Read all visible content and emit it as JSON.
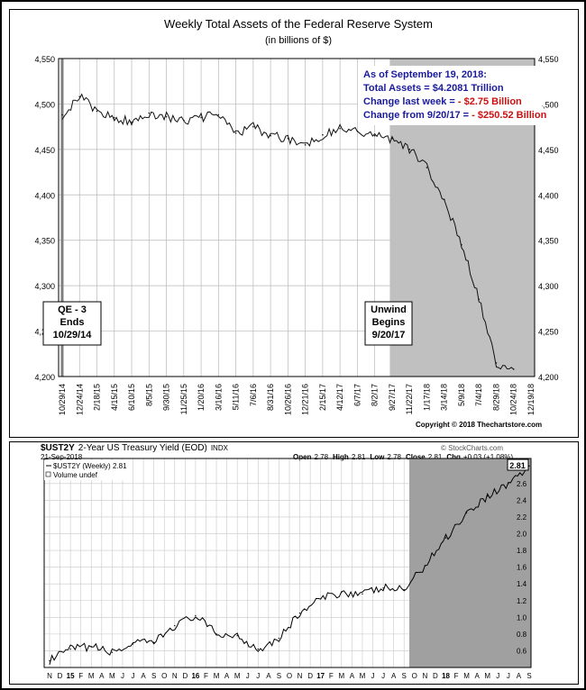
{
  "chart_data": [
    {
      "type": "line",
      "title": "Weekly Total Assets of the Federal Reserve System",
      "subtitle": "(in billions of $)",
      "ylim": [
        4200,
        4550
      ],
      "yticks": [
        "4,550",
        "4,500",
        "4,450",
        "4,400",
        "4,350",
        "4,300",
        "4,250",
        "4,200"
      ],
      "ytick_values": [
        4550,
        4500,
        4450,
        4400,
        4350,
        4300,
        4250,
        4200
      ],
      "xticks": [
        "10/29/14",
        "12/24/14",
        "2/18/15",
        "4/15/15",
        "6/10/15",
        "8/5/15",
        "9/30/15",
        "11/25/15",
        "1/20/16",
        "3/16/16",
        "5/11/16",
        "7/6/16",
        "8/31/16",
        "10/26/16",
        "12/21/16",
        "2/15/17",
        "4/12/17",
        "6/7/17",
        "8/2/17",
        "9/27/17",
        "11/22/17",
        "1/17/18",
        "3/14/18",
        "5/9/18",
        "7/4/18",
        "8/29/18",
        "10/24/18",
        "12/19/18"
      ],
      "grid": true,
      "series": [
        {
          "x": [
            "10/29/14",
            "12/24/14",
            "2/18/15",
            "4/15/15",
            "6/10/15",
            "8/5/15",
            "9/30/15",
            "11/25/15",
            "1/20/16",
            "3/16/16",
            "5/11/16",
            "7/6/16",
            "8/31/16",
            "10/26/16",
            "12/21/16",
            "2/15/17",
            "4/12/17",
            "6/7/17",
            "8/2/17",
            "9/27/17",
            "11/22/17",
            "1/17/18",
            "3/14/18",
            "5/9/18",
            "7/4/18",
            "8/29/18",
            "9/19/18"
          ],
          "values": [
            4488,
            4508,
            4492,
            4485,
            4480,
            4490,
            4486,
            4482,
            4485,
            4488,
            4468,
            4475,
            4465,
            4462,
            4455,
            4466,
            4473,
            4470,
            4465,
            4462,
            4450,
            4430,
            4395,
            4345,
            4285,
            4215,
            4208
          ]
        }
      ],
      "annotations": {
        "qe": [
          "QE - 3",
          "Ends",
          "10/29/14"
        ],
        "unwind": [
          "Unwind",
          "Begins",
          "9/20/17"
        ],
        "info_title": "As of September 19, 2018:",
        "info_total": "Total Assets = $4.2081 Trillion",
        "info_week_label": "Change last week = ",
        "info_week_value": "- $2.75 Billion",
        "info_year_label": "Change from 9/20/17 = ",
        "info_year_value": "- $250.52 Billion",
        "copyright": "Copyright © 2018 Thechartstore.com"
      },
      "colors": {
        "line": "#111111",
        "shade": "#c0c0c0",
        "info_blue": "#1a1a9c",
        "info_red": "#cc1111"
      }
    },
    {
      "type": "line",
      "title": "$UST2Y",
      "subtitle": "2-Year US Treasury Yield (EOD)",
      "exchange": "INDX",
      "brand": "© StockCharts.com",
      "date": "21-Sep-2018",
      "ohlc": {
        "open_label": "Open",
        "open": "2.78",
        "high_label": "High",
        "high": "2.81",
        "low_label": "Low",
        "low": "2.78",
        "close_label": "Close",
        "close": "2.81",
        "chg_label": "Chg",
        "chg": "+0.03 (+1.08%)"
      },
      "legend": [
        "$UST2Y (Weekly) 2.81",
        "Volume undef"
      ],
      "last_value": "2.81",
      "ylim": [
        0.4,
        2.9
      ],
      "yticks": [
        "2.6",
        "2.4",
        "2.2",
        "2.0",
        "1.8",
        "1.6",
        "1.4",
        "1.2",
        "1.0",
        "0.8",
        "0.6"
      ],
      "ytick_values": [
        2.6,
        2.4,
        2.2,
        2.0,
        1.8,
        1.6,
        1.4,
        1.2,
        1.0,
        0.8,
        0.6
      ],
      "xticks": [
        "N",
        "D",
        "15",
        "F",
        "M",
        "A",
        "M",
        "J",
        "J",
        "A",
        "S",
        "O",
        "N",
        "D",
        "16",
        "F",
        "M",
        "A",
        "M",
        "J",
        "J",
        "A",
        "S",
        "O",
        "N",
        "D",
        "17",
        "F",
        "M",
        "A",
        "M",
        "J",
        "J",
        "A",
        "S",
        "O",
        "N",
        "D",
        "18",
        "F",
        "M",
        "A",
        "M",
        "J",
        "J",
        "A",
        "S"
      ],
      "grid": true,
      "series": [
        {
          "name": "$UST2Y (Weekly)",
          "x": [
            "2014-11",
            "2015-01",
            "2015-03",
            "2015-05",
            "2015-07",
            "2015-09",
            "2015-11",
            "2016-01",
            "2016-03",
            "2016-05",
            "2016-07",
            "2016-09",
            "2016-11",
            "2017-01",
            "2017-03",
            "2017-05",
            "2017-07",
            "2017-09",
            "2017-11",
            "2018-01",
            "2018-03",
            "2018-05",
            "2018-07",
            "2018-09"
          ],
          "values": [
            0.48,
            0.62,
            0.65,
            0.58,
            0.68,
            0.7,
            0.9,
            1.02,
            0.8,
            0.78,
            0.62,
            0.75,
            1.05,
            1.22,
            1.3,
            1.28,
            1.35,
            1.33,
            1.62,
            1.95,
            2.25,
            2.45,
            2.6,
            2.81
          ]
        }
      ],
      "colors": {
        "line": "#000000",
        "shade": "#a0a0a0"
      }
    }
  ]
}
